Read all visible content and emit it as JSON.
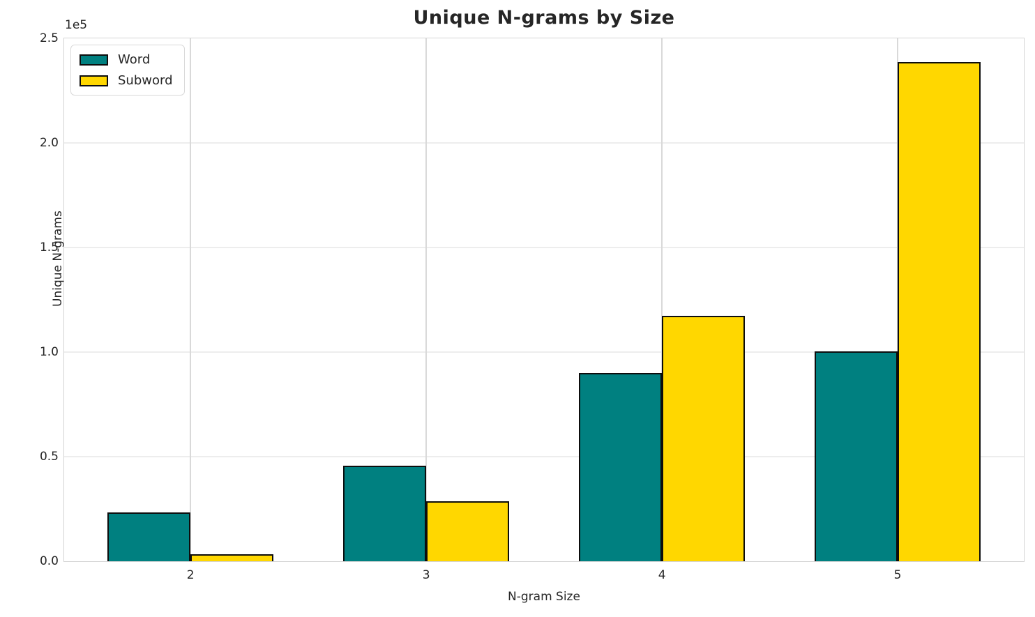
{
  "title": "Unique N-grams by Size",
  "axes": {
    "offset_label": "1e5",
    "xlabel": "N-gram Size",
    "ylabel": "Unique N-grams",
    "ytick_labels": [
      "0.0",
      "0.5",
      "1.0",
      "1.5",
      "2.0",
      "2.5"
    ],
    "ytick_values": [
      0,
      50000,
      100000,
      150000,
      200000,
      250000
    ]
  },
  "legend": {
    "entries": [
      {
        "label": "Word",
        "color": "#008080"
      },
      {
        "label": "Subword",
        "color": "#FFD700"
      }
    ]
  },
  "chart_data": {
    "type": "bar",
    "title": "Unique N-grams by Size",
    "xlabel": "N-gram Size",
    "ylabel": "Unique N-grams",
    "categories": [
      "2",
      "3",
      "4",
      "5"
    ],
    "series": [
      {
        "name": "Word",
        "color": "#008080",
        "values": [
          23500,
          45700,
          89900,
          100300
        ]
      },
      {
        "name": "Subword",
        "color": "#FFD700",
        "values": [
          3400,
          28600,
          117400,
          238600
        ]
      }
    ],
    "ylim": [
      0,
      250000
    ],
    "y_offset_multiplier": "1e5",
    "grid": true,
    "legend_position": "upper left",
    "bar_edge_color": "#000000"
  }
}
